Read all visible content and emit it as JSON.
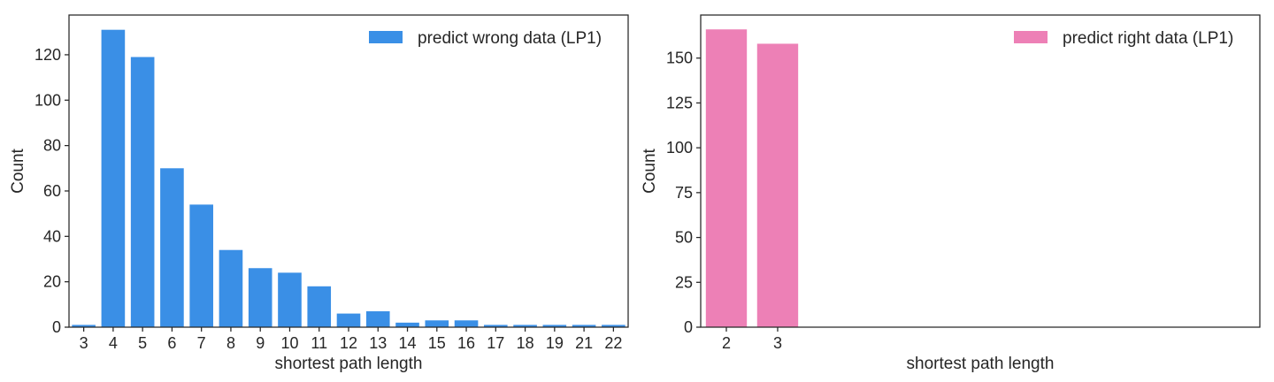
{
  "chart_data": [
    {
      "type": "bar",
      "categories": [
        "3",
        "4",
        "5",
        "6",
        "7",
        "8",
        "9",
        "10",
        "11",
        "12",
        "13",
        "14",
        "15",
        "16",
        "17",
        "18",
        "19",
        "21",
        "22"
      ],
      "series": [
        {
          "name": "predict wrong data (LP1)",
          "values": [
            1,
            131,
            119,
            70,
            54,
            34,
            26,
            24,
            18,
            6,
            7,
            2,
            3,
            3,
            1,
            1,
            1,
            1,
            1
          ],
          "color": "#3a8fe6"
        }
      ],
      "xlabel": "shortest path length",
      "ylabel": "Count",
      "ylim": [
        0,
        137.5
      ],
      "yticks": [
        0,
        20,
        40,
        60,
        80,
        100,
        120
      ],
      "grid": false,
      "legend": "top-right"
    },
    {
      "type": "bar",
      "categories": [
        "2",
        "3"
      ],
      "series": [
        {
          "name": "predict right data (LP1)",
          "values": [
            166,
            158
          ],
          "color": "#ed80b6"
        }
      ],
      "xlabel": "shortest path length",
      "ylabel": "Count",
      "ylim": [
        0,
        174
      ],
      "xlim": [
        -0.5,
        10.4
      ],
      "yticks": [
        0,
        25,
        50,
        75,
        100,
        125,
        150
      ],
      "grid": false,
      "legend": "top-right"
    }
  ]
}
